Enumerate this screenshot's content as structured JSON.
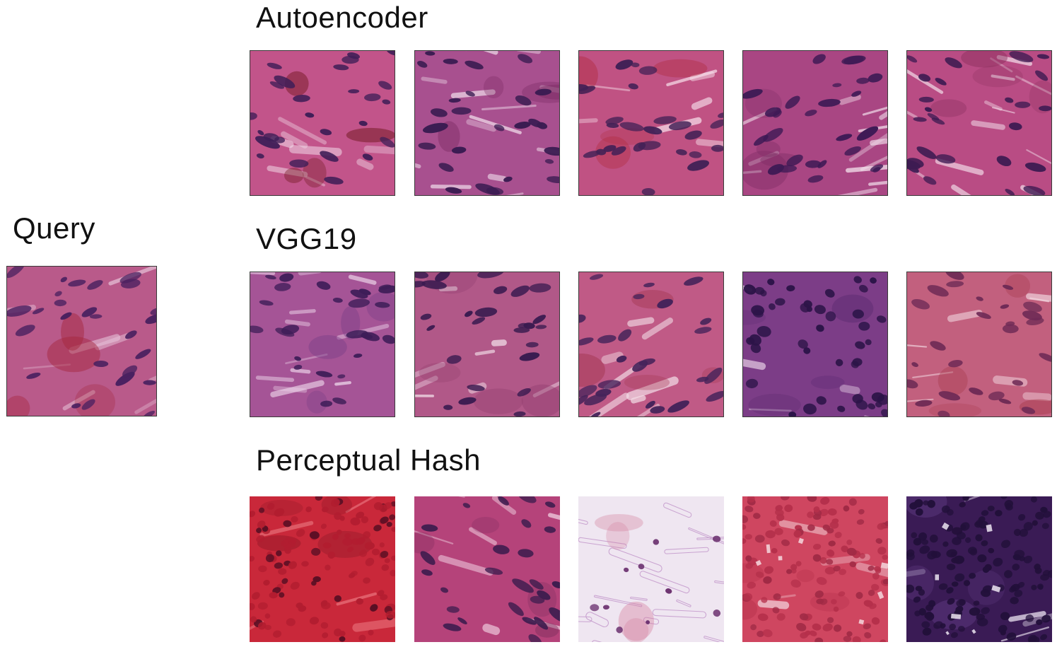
{
  "query": {
    "label": "Query",
    "tile": {
      "bg": "#b95a8a",
      "nuclei": "#4a2160",
      "streak": "#e6c2d8",
      "accent": "#a3243a",
      "seed": 11,
      "style": "stroma",
      "scene": "histology-patch"
    }
  },
  "rows": [
    {
      "label": "Autoencoder",
      "tiles": [
        {
          "bg": "#c2548a",
          "nuclei": "#3f1e57",
          "streak": "#f0d7e6",
          "accent": "#6b1418",
          "seed": 21,
          "style": "stroma",
          "scene": "histology-patch"
        },
        {
          "bg": "#a8508f",
          "nuclei": "#3b1c52",
          "streak": "#f3e4ef",
          "accent": "#7a2a62",
          "seed": 22,
          "style": "fibers",
          "scene": "histology-patch"
        },
        {
          "bg": "#c05283",
          "nuclei": "#422156",
          "streak": "#f5dce8",
          "accent": "#b12d42",
          "seed": 23,
          "style": "stroma",
          "scene": "histology-patch"
        },
        {
          "bg": "#a94683",
          "nuclei": "#3e1a55",
          "streak": "#f5e6f0",
          "accent": "#7c2c63",
          "seed": 24,
          "style": "fibers",
          "scene": "histology-patch"
        },
        {
          "bg": "#b94c84",
          "nuclei": "#3d1b52",
          "streak": "#f7e8f1",
          "accent": "#8a2f5c",
          "seed": 25,
          "style": "fibers",
          "scene": "histology-patch"
        }
      ]
    },
    {
      "label": "VGG19",
      "tiles": [
        {
          "bg": "#a55496",
          "nuclei": "#3e1d58",
          "streak": "#efd9ec",
          "accent": "#7a3e87",
          "seed": 31,
          "style": "fibers",
          "scene": "histology-patch"
        },
        {
          "bg": "#b15888",
          "nuclei": "#3a1b50",
          "streak": "#f3e0ea",
          "accent": "#8f3b6c",
          "seed": 32,
          "style": "stroma",
          "scene": "histology-patch"
        },
        {
          "bg": "#c05a86",
          "nuclei": "#45235a",
          "streak": "#f2dce6",
          "accent": "#a2364f",
          "seed": 33,
          "style": "stroma",
          "scene": "histology-patch"
        },
        {
          "bg": "#7c3d87",
          "nuclei": "#2c1448",
          "streak": "#e9d3e8",
          "accent": "#5a2a70",
          "seed": 34,
          "style": "dense",
          "scene": "histology-patch"
        },
        {
          "bg": "#c2607e",
          "nuclei": "#6f2b56",
          "streak": "#f0d2dc",
          "accent": "#a73a4c",
          "seed": 35,
          "style": "stroma",
          "scene": "histology-patch"
        }
      ]
    },
    {
      "label": "Perceptual Hash",
      "tiles": [
        {
          "bg": "#c9283a",
          "nuclei": "#5a0f24",
          "streak": "#e8707a",
          "accent": "#8e1727",
          "seed": 41,
          "style": "rbc-dark",
          "scene": "histology-patch"
        },
        {
          "bg": "#b5437a",
          "nuclei": "#3f1d4f",
          "streak": "#f0cfe0",
          "accent": "#7b2c5c",
          "seed": 42,
          "style": "stroma",
          "scene": "histology-patch"
        },
        {
          "bg": "#efe6f1",
          "nuclei": "#6a2f6e",
          "streak": "#c59ccd",
          "accent": "#d37a9a",
          "seed": 43,
          "style": "loose",
          "scene": "histology-patch"
        },
        {
          "bg": "#cf4660",
          "nuclei": "#a02a45",
          "streak": "#f4d8de",
          "accent": "#b5304b",
          "seed": 44,
          "style": "rbc",
          "scene": "histology-patch"
        },
        {
          "bg": "#3a1b55",
          "nuclei": "#22103a",
          "streak": "#ece4f1",
          "accent": "#5e3a82",
          "seed": 45,
          "style": "lymph",
          "scene": "histology-patch"
        }
      ]
    }
  ]
}
